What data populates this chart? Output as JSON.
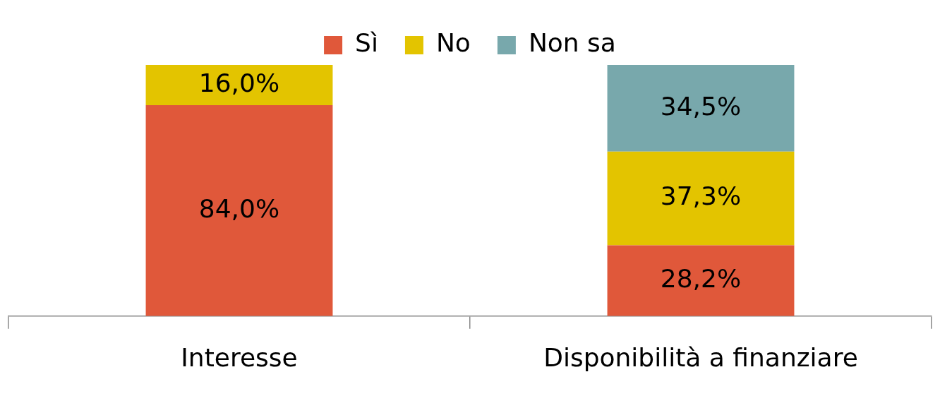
{
  "chart_data": {
    "type": "bar",
    "stacked": true,
    "categories": [
      "Interesse",
      "Disponibilità a finanziare"
    ],
    "series": [
      {
        "name": "Sì",
        "color": "#e0583a",
        "values": [
          84.0,
          28.2
        ],
        "value_labels": [
          "84,0%",
          "28,2%"
        ]
      },
      {
        "name": "No",
        "color": "#e3c400",
        "values": [
          16.0,
          37.3
        ],
        "value_labels": [
          "16,0%",
          "37,3%"
        ]
      },
      {
        "name": "Non sa",
        "color": "#78a8ac",
        "values": [
          0,
          34.5
        ],
        "value_labels": [
          null,
          "34,5%"
        ]
      }
    ],
    "ylim": [
      0,
      100
    ],
    "tick_labels": "x",
    "grid": false,
    "legend": "top"
  }
}
